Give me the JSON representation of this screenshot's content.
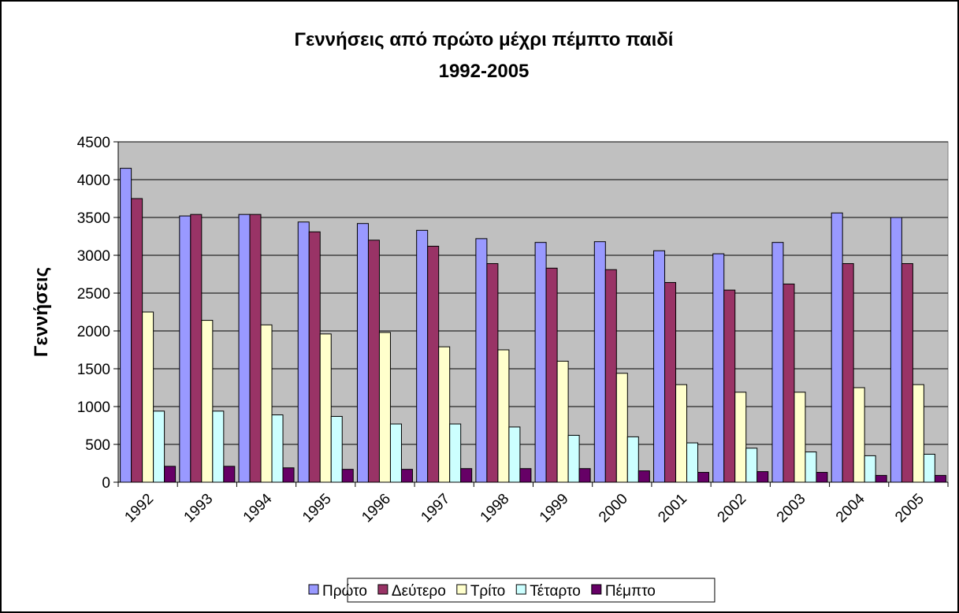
{
  "chart_data": {
    "type": "bar",
    "title": "Γεννήσεις από πρώτο μέχρι πέμπτο παιδί",
    "subtitle": "1992-2005",
    "y_label": "Γεννήσεις",
    "categories": [
      "1992",
      "1993",
      "1994",
      "1995",
      "1996",
      "1997",
      "1998",
      "1999",
      "2000",
      "2001",
      "2002",
      "2003",
      "2004",
      "2005"
    ],
    "series": [
      {
        "name": "Πρώτο",
        "color": "#9999ff",
        "values": [
          4150,
          3520,
          3540,
          3440,
          3420,
          3330,
          3220,
          3170,
          3180,
          3060,
          3020,
          3170,
          3560,
          3500
        ]
      },
      {
        "name": "Δεύτερο",
        "color": "#993366",
        "values": [
          3750,
          3540,
          3540,
          3310,
          3200,
          3120,
          2890,
          2830,
          2810,
          2640,
          2540,
          2620,
          2890,
          2890
        ]
      },
      {
        "name": "Τρίτο",
        "color": "#ffffcc",
        "values": [
          2250,
          2140,
          2080,
          1960,
          1980,
          1790,
          1750,
          1600,
          1440,
          1290,
          1190,
          1190,
          1250,
          1290
        ]
      },
      {
        "name": "Τέταρτο",
        "color": "#ccffff",
        "values": [
          940,
          940,
          890,
          870,
          770,
          770,
          730,
          620,
          600,
          520,
          450,
          400,
          350,
          370
        ]
      },
      {
        "name": "Πέμπτο",
        "color": "#660066",
        "values": [
          210,
          210,
          190,
          170,
          170,
          180,
          180,
          180,
          150,
          130,
          140,
          130,
          90,
          90
        ]
      }
    ],
    "ylim": [
      0,
      4500
    ],
    "yticks": [
      0,
      500,
      1000,
      1500,
      2000,
      2500,
      3000,
      3500,
      4000,
      4500
    ],
    "grid": true,
    "legend": "bottom",
    "plot_background": "#c0c0c0"
  }
}
